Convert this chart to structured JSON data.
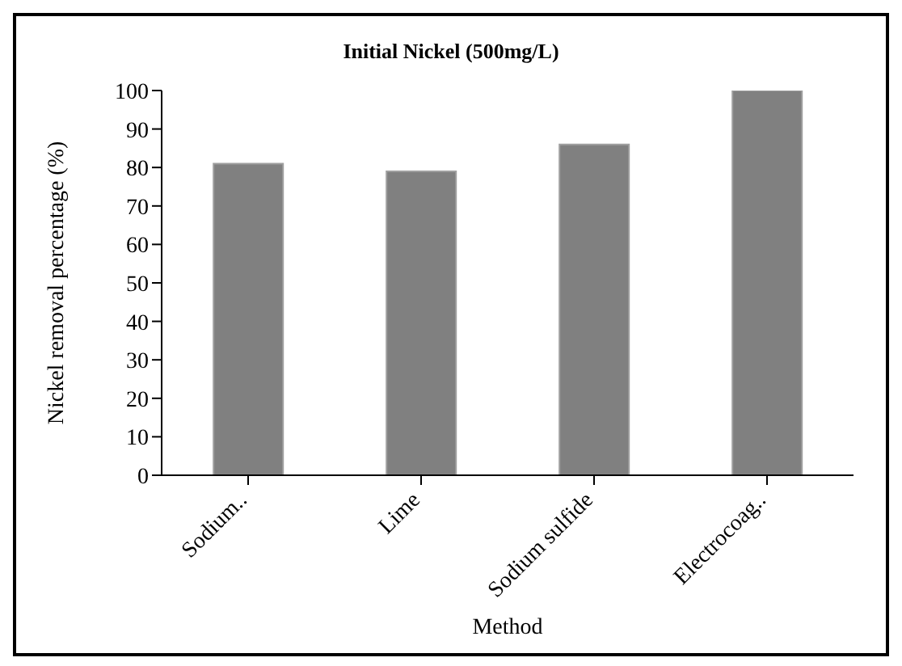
{
  "chart_data": {
    "type": "bar",
    "title": "Initial Nickel (500mg/L)",
    "xlabel": "Method",
    "ylabel": "Nickel removal percentage (%)",
    "categories": [
      "Sodium..",
      "Lime",
      "Sodium sulfide",
      "Electrocoag.."
    ],
    "values": [
      81,
      79,
      86,
      100
    ],
    "color": "#808080",
    "ylim": [
      0,
      100
    ],
    "yticks": [
      0,
      10,
      20,
      30,
      40,
      50,
      60,
      70,
      80,
      90,
      100
    ],
    "grid": false
  }
}
